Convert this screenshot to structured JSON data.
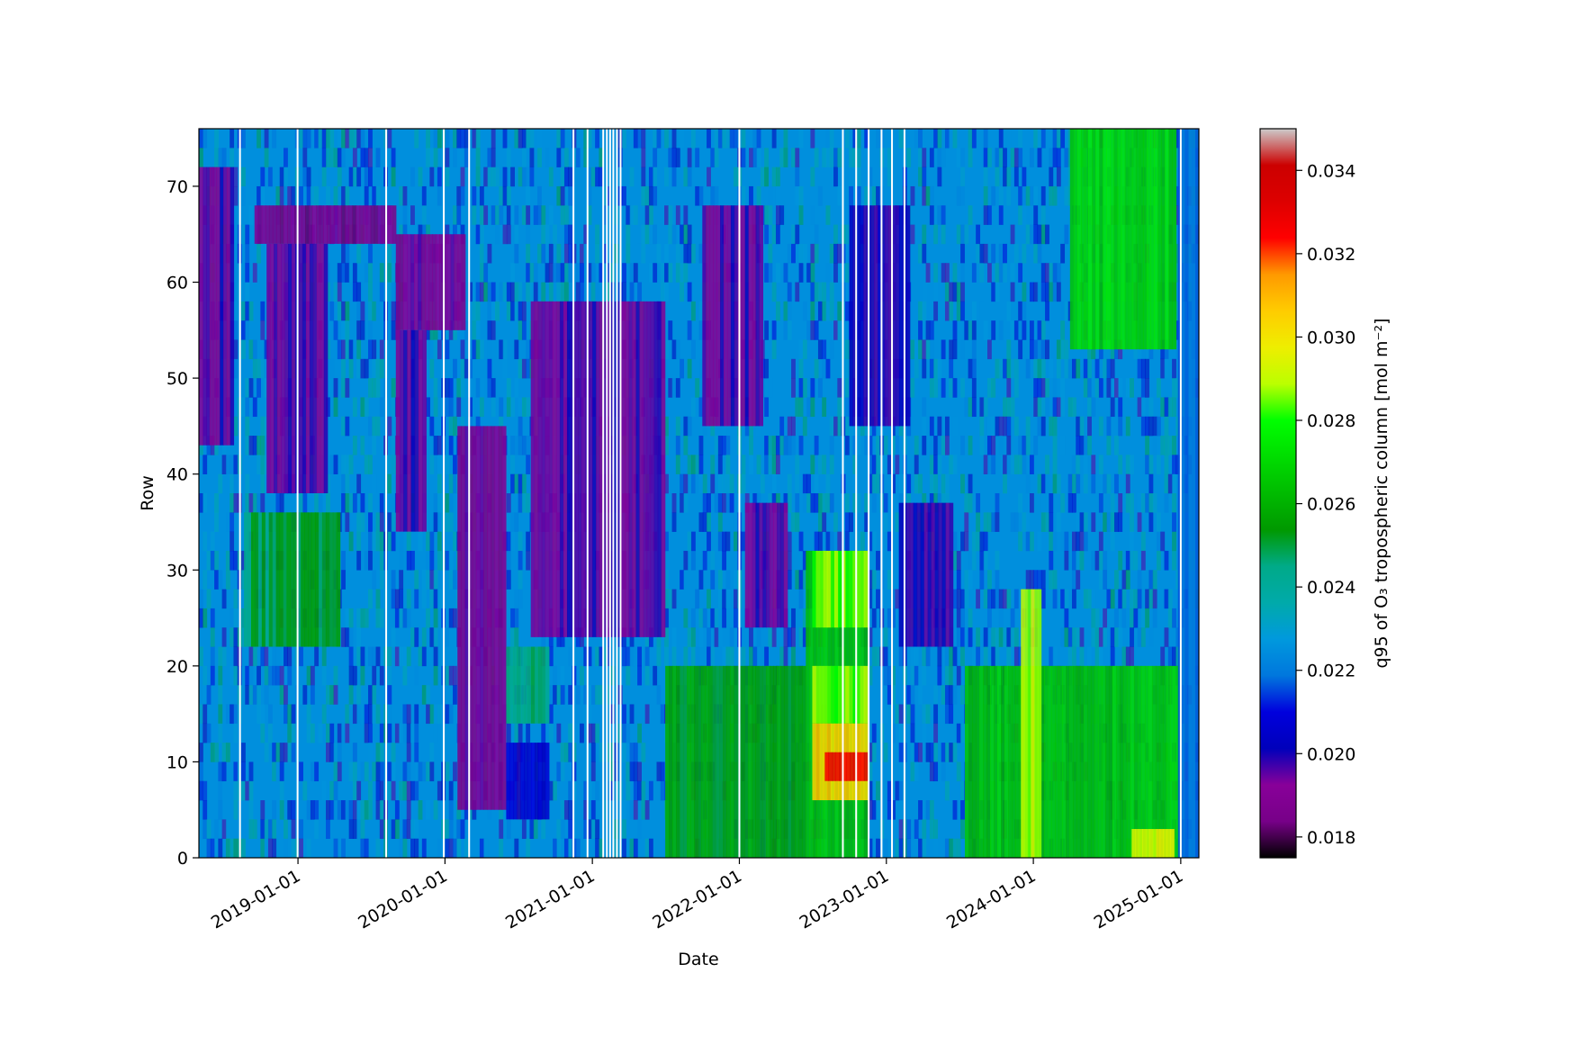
{
  "chart_data": {
    "type": "heatmap",
    "title": "",
    "xlabel": "Date",
    "ylabel": "Row",
    "x_range": [
      "2018-04-30",
      "2025-02-15"
    ],
    "y_range": [
      0,
      76
    ],
    "x_ticks": [
      "2019-01-01",
      "2020-01-01",
      "2021-01-01",
      "2022-01-01",
      "2023-01-01",
      "2024-01-01",
      "2025-01-01"
    ],
    "y_ticks": [
      0,
      10,
      20,
      30,
      40,
      50,
      60,
      70
    ],
    "colorbar": {
      "label": "q95 of O₃ tropospheric column [mol m⁻²]",
      "range": [
        0.0175,
        0.035
      ],
      "ticks": [
        "0.018",
        "0.020",
        "0.022",
        "0.024",
        "0.026",
        "0.028",
        "0.030",
        "0.032",
        "0.034"
      ],
      "colormap": "nipy_spectral"
    },
    "no_data_dates": [
      "2018-08-10",
      "2018-12-31",
      "2019-08-08",
      "2019-12-29",
      "2020-03-01",
      "2020-11-15",
      "2020-12-20",
      "2021-01-28",
      "2021-02-06",
      "2021-02-14",
      "2021-02-22",
      "2021-03-03",
      "2021-03-12",
      "2022-01-01",
      "2022-09-15",
      "2022-10-18",
      "2022-11-18",
      "2022-12-20",
      "2023-01-15",
      "2023-02-15",
      "2025-01-01"
    ],
    "features": [
      {
        "date_start": "2018-05-01",
        "date_end": "2018-07-25",
        "row_start": 43,
        "row_end": 72,
        "value": 0.0195
      },
      {
        "date_start": "2018-09-15",
        "date_end": "2019-09-01",
        "row_start": 64,
        "row_end": 68,
        "value": 0.0188
      },
      {
        "date_start": "2018-10-15",
        "date_end": "2019-03-15",
        "row_start": 38,
        "row_end": 64,
        "value": 0.0195
      },
      {
        "date_start": "2018-08-20",
        "date_end": "2019-04-15",
        "row_start": 22,
        "row_end": 36,
        "value": 0.025
      },
      {
        "date_start": "2019-09-01",
        "date_end": "2020-02-20",
        "row_start": 55,
        "row_end": 65,
        "value": 0.019
      },
      {
        "date_start": "2019-09-01",
        "date_end": "2019-11-15",
        "row_start": 34,
        "row_end": 55,
        "value": 0.0195
      },
      {
        "date_start": "2020-02-01",
        "date_end": "2020-05-31",
        "row_start": 5,
        "row_end": 45,
        "value": 0.019
      },
      {
        "date_start": "2020-06-01",
        "date_end": "2020-09-15",
        "row_start": 4,
        "row_end": 12,
        "value": 0.0205
      },
      {
        "date_start": "2020-06-01",
        "date_end": "2020-09-15",
        "row_start": 14,
        "row_end": 22,
        "value": 0.0245
      },
      {
        "date_start": "2020-08-01",
        "date_end": "2021-06-30",
        "row_start": 23,
        "row_end": 58,
        "value": 0.0195
      },
      {
        "date_start": "2021-07-01",
        "date_end": "2022-06-15",
        "row_start": 0,
        "row_end": 20,
        "value": 0.0255
      },
      {
        "date_start": "2021-10-01",
        "date_end": "2022-02-28",
        "row_start": 45,
        "row_end": 68,
        "value": 0.0195
      },
      {
        "date_start": "2022-01-15",
        "date_end": "2022-04-30",
        "row_start": 24,
        "row_end": 37,
        "value": 0.0195
      },
      {
        "date_start": "2022-06-15",
        "date_end": "2022-11-15",
        "row_start": 0,
        "row_end": 32,
        "value": 0.0265
      },
      {
        "date_start": "2022-07-01",
        "date_end": "2022-11-15",
        "row_start": 24,
        "row_end": 32,
        "value": 0.0285
      },
      {
        "date_start": "2022-07-01",
        "date_end": "2022-11-15",
        "row_start": 14,
        "row_end": 20,
        "value": 0.0285
      },
      {
        "date_start": "2022-07-01",
        "date_end": "2022-11-15",
        "row_start": 6,
        "row_end": 14,
        "value": 0.0305
      },
      {
        "date_start": "2022-08-01",
        "date_end": "2022-11-15",
        "row_start": 8,
        "row_end": 11,
        "value": 0.033
      },
      {
        "date_start": "2022-10-01",
        "date_end": "2023-02-28",
        "row_start": 45,
        "row_end": 68,
        "value": 0.02
      },
      {
        "date_start": "2023-02-01",
        "date_end": "2023-06-15",
        "row_start": 22,
        "row_end": 37,
        "value": 0.02
      },
      {
        "date_start": "2023-07-15",
        "date_end": "2025-01-01",
        "row_start": 0,
        "row_end": 20,
        "value": 0.0265
      },
      {
        "date_start": "2023-12-01",
        "date_end": "2024-01-20",
        "row_start": 0,
        "row_end": 28,
        "value": 0.029
      },
      {
        "date_start": "2024-09-01",
        "date_end": "2024-12-15",
        "row_start": 0,
        "row_end": 3,
        "value": 0.0295
      },
      {
        "date_start": "2024-04-01",
        "date_end": "2024-12-20",
        "row_start": 53,
        "row_end": 76,
        "value": 0.027
      },
      {
        "date_start": "2024-12-25",
        "date_end": "2025-02-15",
        "row_start": 0,
        "row_end": 76,
        "value": 0.0215
      }
    ]
  }
}
